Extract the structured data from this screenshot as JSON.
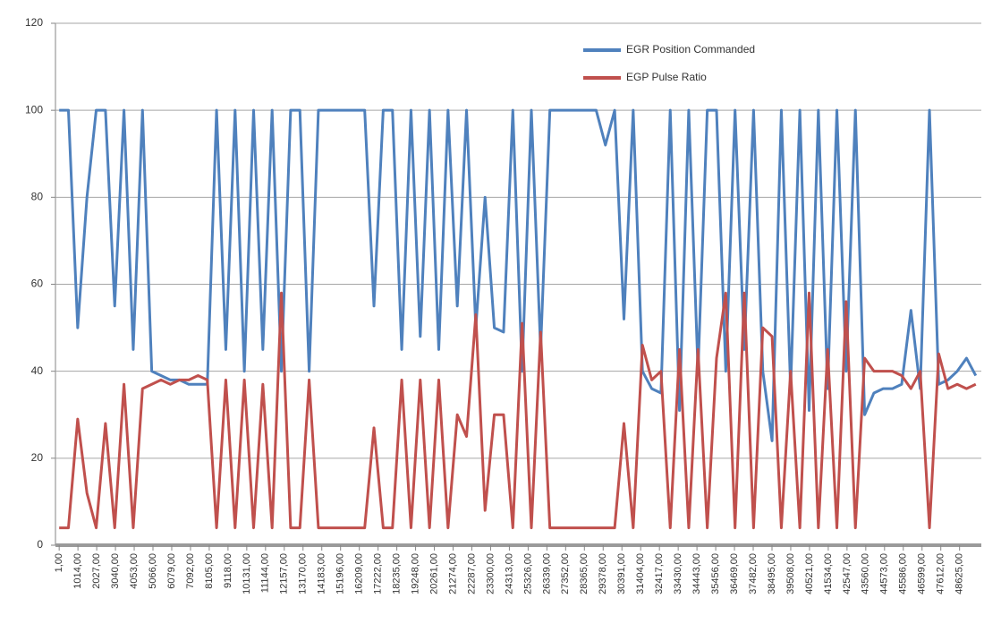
{
  "chart_data": {
    "type": "line",
    "x": [
      1,
      500,
      1000,
      1500,
      2000,
      2500,
      3000,
      3500,
      4000,
      4500,
      5000,
      5500,
      6000,
      6500,
      7000,
      7500,
      8000,
      8500,
      9000,
      9500,
      10000,
      10500,
      11000,
      11500,
      12000,
      12500,
      13000,
      13500,
      14000,
      14500,
      15000,
      15500,
      16000,
      16500,
      17000,
      17500,
      18000,
      18500,
      19000,
      19500,
      20000,
      20500,
      21000,
      21500,
      22000,
      22500,
      23000,
      23500,
      24000,
      24500,
      25000,
      25500,
      26000,
      26500,
      27000,
      27500,
      28000,
      28500,
      29000,
      29500,
      30000,
      30500,
      31000,
      31500,
      32000,
      32500,
      33000,
      33500,
      34000,
      34500,
      35000,
      35500,
      36000,
      36500,
      37000,
      37500,
      38000,
      38500,
      39000,
      39500,
      40000,
      40500,
      41000,
      41500,
      42000,
      42500,
      43000,
      43500,
      44000,
      44500,
      45000,
      45500,
      46000,
      46500,
      47000,
      47500,
      48000,
      48500,
      49000,
      49500
    ],
    "series": [
      {
        "name": "EGR Position Commanded",
        "color": "#4f81bd",
        "values": [
          100,
          100,
          50,
          80,
          100,
          100,
          55,
          100,
          45,
          100,
          40,
          39,
          38,
          38,
          37,
          37,
          37,
          100,
          45,
          100,
          40,
          100,
          45,
          100,
          40,
          100,
          100,
          40,
          100,
          100,
          100,
          100,
          100,
          100,
          55,
          100,
          100,
          45,
          100,
          48,
          100,
          45,
          100,
          55,
          100,
          50,
          80,
          50,
          49,
          100,
          40,
          100,
          45,
          100,
          100,
          100,
          100,
          100,
          100,
          92,
          100,
          52,
          100,
          40,
          36,
          35,
          100,
          31,
          100,
          40,
          100,
          100,
          40,
          100,
          45,
          100,
          40,
          24,
          100,
          36,
          100,
          31,
          100,
          36,
          100,
          40,
          100,
          30,
          35,
          36,
          36,
          37,
          54,
          36,
          100,
          37,
          38,
          40,
          43,
          39
        ]
      },
      {
        "name": "EGP Pulse Ratio",
        "color": "#c0504d",
        "values": [
          4,
          4,
          29,
          12,
          4,
          28,
          4,
          37,
          4,
          36,
          37,
          38,
          37,
          38,
          38,
          39,
          38,
          4,
          38,
          4,
          38,
          4,
          37,
          4,
          58,
          4,
          4,
          38,
          4,
          4,
          4,
          4,
          4,
          4,
          27,
          4,
          4,
          38,
          4,
          38,
          4,
          38,
          4,
          30,
          25,
          53,
          8,
          30,
          30,
          4,
          51,
          4,
          49,
          4,
          4,
          4,
          4,
          4,
          4,
          4,
          4,
          28,
          4,
          46,
          38,
          40,
          4,
          45,
          4,
          45,
          4,
          43,
          58,
          4,
          58,
          4,
          50,
          48,
          4,
          40,
          4,
          58,
          4,
          45,
          4,
          56,
          4,
          43,
          40,
          40,
          40,
          39,
          36,
          40,
          4,
          44,
          36,
          37,
          36,
          37
        ]
      }
    ],
    "xlim": [
      -200,
      49800
    ],
    "xticks": [
      {
        "value": 1,
        "label": "1,00"
      },
      {
        "value": 1014,
        "label": "1014,00"
      },
      {
        "value": 2027,
        "label": "2027,00"
      },
      {
        "value": 3040,
        "label": "3040,00"
      },
      {
        "value": 4053,
        "label": "4053,00"
      },
      {
        "value": 5066,
        "label": "5066,00"
      },
      {
        "value": 6079,
        "label": "6079,00"
      },
      {
        "value": 7092,
        "label": "7092,00"
      },
      {
        "value": 8105,
        "label": "8105,00"
      },
      {
        "value": 9118,
        "label": "9118,00"
      },
      {
        "value": 10131,
        "label": "10131,00"
      },
      {
        "value": 11144,
        "label": "11144,00"
      },
      {
        "value": 12157,
        "label": "12157,00"
      },
      {
        "value": 13170,
        "label": "13170,00"
      },
      {
        "value": 14183,
        "label": "14183,00"
      },
      {
        "value": 15196,
        "label": "15196,00"
      },
      {
        "value": 16209,
        "label": "16209,00"
      },
      {
        "value": 17222,
        "label": "17222,00"
      },
      {
        "value": 18235,
        "label": "18235,00"
      },
      {
        "value": 19248,
        "label": "19248,00"
      },
      {
        "value": 20261,
        "label": "20261,00"
      },
      {
        "value": 21274,
        "label": "21274,00"
      },
      {
        "value": 22287,
        "label": "22287,00"
      },
      {
        "value": 23300,
        "label": "23300,00"
      },
      {
        "value": 24313,
        "label": "24313,00"
      },
      {
        "value": 25326,
        "label": "25326,00"
      },
      {
        "value": 26339,
        "label": "26339,00"
      },
      {
        "value": 27352,
        "label": "27352,00"
      },
      {
        "value": 28365,
        "label": "28365,00"
      },
      {
        "value": 29378,
        "label": "29378,00"
      },
      {
        "value": 30391,
        "label": "30391,00"
      },
      {
        "value": 31404,
        "label": "31404,00"
      },
      {
        "value": 32417,
        "label": "32417,00"
      },
      {
        "value": 33430,
        "label": "33430,00"
      },
      {
        "value": 34443,
        "label": "34443,00"
      },
      {
        "value": 35456,
        "label": "35456,00"
      },
      {
        "value": 36469,
        "label": "36469,00"
      },
      {
        "value": 37482,
        "label": "37482,00"
      },
      {
        "value": 38495,
        "label": "38495,00"
      },
      {
        "value": 39508,
        "label": "39508,00"
      },
      {
        "value": 40521,
        "label": "40521,00"
      },
      {
        "value": 41534,
        "label": "41534,00"
      },
      {
        "value": 42547,
        "label": "42547,00"
      },
      {
        "value": 43560,
        "label": "43560,00"
      },
      {
        "value": 44573,
        "label": "44573,00"
      },
      {
        "value": 45586,
        "label": "45586,00"
      },
      {
        "value": 46599,
        "label": "46599,00"
      },
      {
        "value": 47612,
        "label": "47612,00"
      },
      {
        "value": 48625,
        "label": "48625,00"
      }
    ],
    "ylim": [
      0,
      120
    ],
    "yticks": [
      0,
      20,
      40,
      60,
      80,
      100,
      120
    ],
    "grid": true,
    "legend": "top-right"
  }
}
